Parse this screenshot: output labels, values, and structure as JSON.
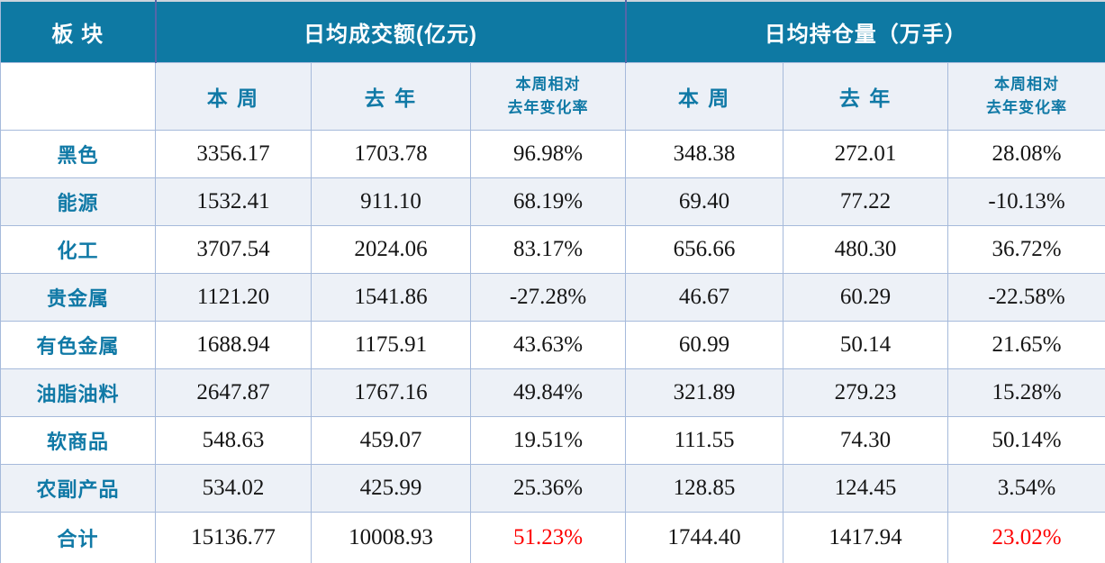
{
  "header": {
    "corner": "板 块",
    "group1": "日均成交额(亿元)",
    "group2": "日均持仓量（万手）",
    "sub": {
      "week": "本 周",
      "year": "去 年",
      "change1": "本周相对",
      "change2": "去年变化率"
    }
  },
  "colors": {
    "header_teal": "#0e79a3",
    "accent_text": "#1079a6",
    "stripe_bg": "#edf1f7",
    "grid_border": "#a6badb",
    "header_divider": "#5566a9",
    "total_change_red": "#fe0000"
  },
  "chart_data": {
    "type": "table",
    "title": "",
    "column_groups": [
      "板块",
      "日均成交额(亿元)",
      "日均持仓量（万手）"
    ],
    "columns": [
      "板块",
      "成交额-本周",
      "成交额-去年",
      "成交额-本周相对去年变化率",
      "持仓量-本周",
      "持仓量-去年",
      "持仓量-本周相对去年变化率"
    ],
    "rows": [
      {
        "sector": "黑色",
        "turnover_week": "3356.17",
        "turnover_year": "1703.78",
        "turnover_change": "96.98%",
        "oi_week": "348.38",
        "oi_year": "272.01",
        "oi_change": "28.08%"
      },
      {
        "sector": "能源",
        "turnover_week": "1532.41",
        "turnover_year": "911.10",
        "turnover_change": "68.19%",
        "oi_week": "69.40",
        "oi_year": "77.22",
        "oi_change": "-10.13%"
      },
      {
        "sector": "化工",
        "turnover_week": "3707.54",
        "turnover_year": "2024.06",
        "turnover_change": "83.17%",
        "oi_week": "656.66",
        "oi_year": "480.30",
        "oi_change": "36.72%"
      },
      {
        "sector": "贵金属",
        "turnover_week": "1121.20",
        "turnover_year": "1541.86",
        "turnover_change": "-27.28%",
        "oi_week": "46.67",
        "oi_year": "60.29",
        "oi_change": "-22.58%"
      },
      {
        "sector": "有色金属",
        "turnover_week": "1688.94",
        "turnover_year": "1175.91",
        "turnover_change": "43.63%",
        "oi_week": "60.99",
        "oi_year": "50.14",
        "oi_change": "21.65%"
      },
      {
        "sector": "油脂油料",
        "turnover_week": "2647.87",
        "turnover_year": "1767.16",
        "turnover_change": "49.84%",
        "oi_week": "321.89",
        "oi_year": "279.23",
        "oi_change": "15.28%"
      },
      {
        "sector": "软商品",
        "turnover_week": "548.63",
        "turnover_year": "459.07",
        "turnover_change": "19.51%",
        "oi_week": "111.55",
        "oi_year": "74.30",
        "oi_change": "50.14%"
      },
      {
        "sector": "农副产品",
        "turnover_week": "534.02",
        "turnover_year": "425.99",
        "turnover_change": "25.36%",
        "oi_week": "128.85",
        "oi_year": "124.45",
        "oi_change": "3.54%"
      },
      {
        "sector": "合计",
        "turnover_week": "15136.77",
        "turnover_year": "10008.93",
        "turnover_change": "51.23%",
        "oi_week": "1744.40",
        "oi_year": "1417.94",
        "oi_change": "23.02%"
      }
    ]
  }
}
